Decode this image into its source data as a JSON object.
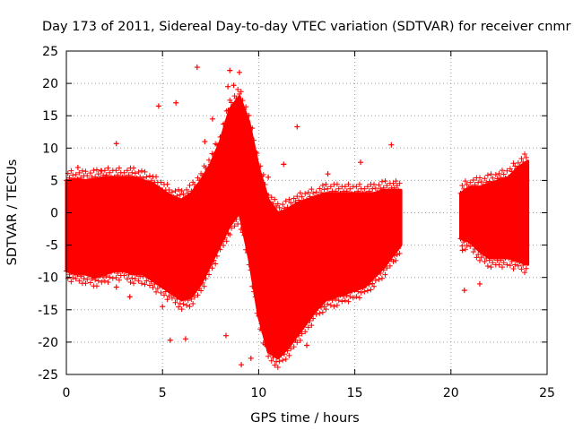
{
  "chart_data": {
    "type": "scatter",
    "title": "Day 173 of 2011, Sidereal Day-to-day VTEC variation (SDTVAR) for receiver cnmr",
    "xlabel": "GPS time / hours",
    "ylabel": "SDTVAR / TECUs",
    "xlim": [
      0,
      25
    ],
    "ylim": [
      -25,
      25
    ],
    "xticks": [
      0,
      5,
      10,
      15,
      20,
      25
    ],
    "yticks": [
      -25,
      -20,
      -15,
      -10,
      -5,
      0,
      5,
      10,
      15,
      20,
      25
    ],
    "grid": true,
    "marker": "+",
    "color": "#ff0000",
    "series": [
      {
        "name": "SDTVAR",
        "segment_1_envelope": {
          "x": [
            0.0,
            0.5,
            1.0,
            1.5,
            2.0,
            2.5,
            3.0,
            3.5,
            4.0,
            4.5,
            5.0,
            5.5,
            6.0,
            6.5,
            7.0,
            7.5,
            8.0,
            8.5,
            9.0,
            9.5,
            10.0,
            10.5,
            11.0,
            11.5,
            12.0,
            12.5,
            13.0,
            13.5,
            14.0,
            14.5,
            15.0,
            15.5,
            16.0,
            16.5,
            17.0,
            17.4
          ],
          "upper": [
            5.0,
            5.2,
            5.0,
            5.2,
            5.5,
            5.5,
            5.5,
            5.5,
            5.0,
            4.5,
            3.5,
            2.5,
            2.0,
            3.0,
            5.0,
            7.5,
            11.0,
            16.0,
            18.0,
            14.0,
            7.0,
            2.0,
            0.0,
            0.5,
            1.5,
            2.0,
            2.5,
            3.0,
            3.0,
            3.0,
            3.0,
            3.0,
            3.0,
            3.5,
            3.5,
            3.5
          ],
          "lower": [
            -9.0,
            -9.5,
            -9.5,
            -10.0,
            -9.5,
            -9.0,
            -9.0,
            -9.5,
            -9.5,
            -10.5,
            -11.5,
            -12.5,
            -13.5,
            -13.0,
            -11.0,
            -8.0,
            -5.0,
            -2.0,
            0.0,
            -7.0,
            -16.0,
            -21.5,
            -22.5,
            -21.0,
            -19.0,
            -17.0,
            -15.0,
            -13.5,
            -13.0,
            -12.5,
            -12.0,
            -11.5,
            -10.0,
            -8.5,
            -6.5,
            -5.0
          ]
        },
        "segment_2_envelope": {
          "x": [
            20.5,
            21.0,
            21.5,
            22.0,
            22.5,
            23.0,
            23.5,
            24.0
          ],
          "upper": [
            3.0,
            4.0,
            4.0,
            4.5,
            5.0,
            5.5,
            7.0,
            8.0
          ],
          "lower": [
            -4.0,
            -4.5,
            -6.0,
            -7.0,
            -7.0,
            -7.0,
            -7.5,
            -8.0
          ]
        },
        "outliers": [
          {
            "x": 6.8,
            "y": 22.5
          },
          {
            "x": 8.5,
            "y": 22.0
          },
          {
            "x": 9.0,
            "y": 21.7
          },
          {
            "x": 8.4,
            "y": 19.5
          },
          {
            "x": 8.7,
            "y": 19.7
          },
          {
            "x": 5.7,
            "y": 17.0
          },
          {
            "x": 4.8,
            "y": 16.5
          },
          {
            "x": 12.0,
            "y": 13.3
          },
          {
            "x": 7.6,
            "y": 14.5
          },
          {
            "x": 2.6,
            "y": 10.7
          },
          {
            "x": 16.9,
            "y": 10.5
          },
          {
            "x": 7.2,
            "y": 11.0
          },
          {
            "x": 15.3,
            "y": 7.8
          },
          {
            "x": 11.3,
            "y": 7.5
          },
          {
            "x": 0.6,
            "y": 7.0
          },
          {
            "x": 1.8,
            "y": 6.5
          },
          {
            "x": 10.5,
            "y": 5.5
          },
          {
            "x": 13.6,
            "y": 6.0
          },
          {
            "x": 2.6,
            "y": -11.5
          },
          {
            "x": 3.3,
            "y": -13.0
          },
          {
            "x": 5.0,
            "y": -14.5
          },
          {
            "x": 5.4,
            "y": -19.7
          },
          {
            "x": 6.2,
            "y": -19.5
          },
          {
            "x": 8.3,
            "y": -19.0
          },
          {
            "x": 9.1,
            "y": -23.5
          },
          {
            "x": 9.6,
            "y": -22.5
          },
          {
            "x": 12.5,
            "y": -20.5
          },
          {
            "x": 20.7,
            "y": -12.0
          },
          {
            "x": 21.5,
            "y": -11.0
          },
          {
            "x": 20.6,
            "y": -5.8
          }
        ]
      }
    ]
  }
}
